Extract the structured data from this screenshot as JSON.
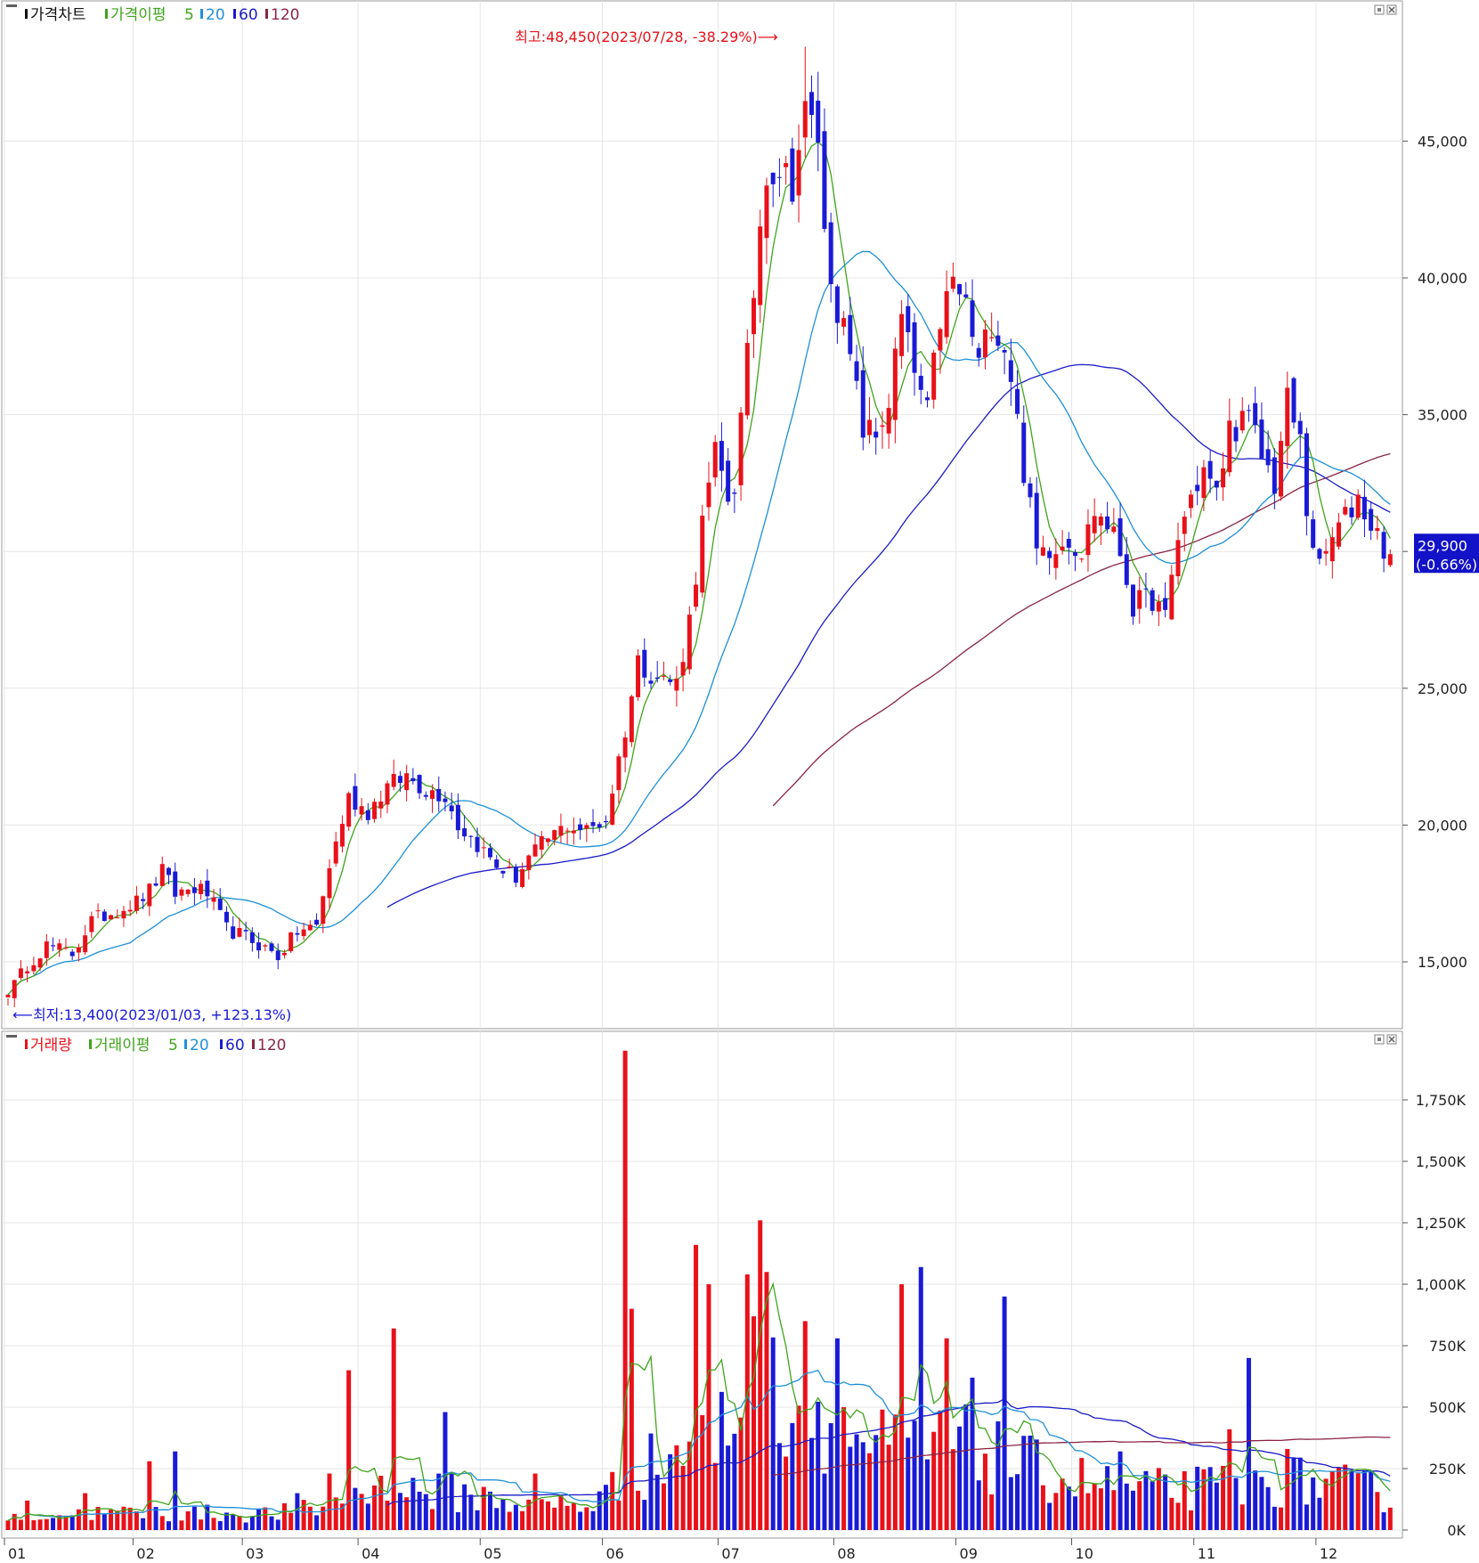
{
  "colors": {
    "up": "#e8111a",
    "down": "#1a1ad6",
    "ma5": "#3fa51c",
    "ma20": "#1e90d8",
    "ma60": "#1c1cc8",
    "ma120": "#8a2446",
    "grid": "#e6e6e6",
    "frame": "#9a9a9a",
    "price_tag_bg": "#1212c8",
    "annot": "#e8111a"
  },
  "icons": [
    "box-icon",
    "close-icon"
  ],
  "price_panel": {
    "legend": {
      "name": "가격차트",
      "ma_label": "가격이평",
      "p5": "5",
      "p20": "20",
      "p60": "60",
      "p120": "120"
    },
    "high_note": "최고:48,450(2023/07/28, -38.29%)⟶",
    "low_note": "⟵최저:13,400(2023/01/03, +123.13%)",
    "last_price": "29,900",
    "last_change": "(-0.66%)",
    "y_ticks": [
      "15,000",
      "20,000",
      "25,000",
      "30,000",
      "35,000",
      "40,000",
      "45,000"
    ]
  },
  "volume_panel": {
    "legend": {
      "name": "거래량",
      "ma_label": "거래이평",
      "p5": "5",
      "p20": "20",
      "p60": "60",
      "p120": "120"
    },
    "y_ticks": [
      "0K",
      "250K",
      "500K",
      "750K",
      "1,000K",
      "1,250K",
      "1,500K",
      "1,750K"
    ]
  },
  "x_labels": [
    "01",
    "02",
    "03",
    "04",
    "05",
    "06",
    "07",
    "08",
    "09",
    "10",
    "11",
    "12"
  ],
  "chart_data": [
    {
      "type": "candlestick",
      "title": "가격차트",
      "x_categories": [
        "01",
        "02",
        "03",
        "04",
        "05",
        "06",
        "07",
        "08",
        "09",
        "10",
        "11",
        "12"
      ],
      "ylim": [
        12800,
        49000
      ],
      "close_anchors": [
        [
          0,
          13800
        ],
        [
          3,
          14900
        ],
        [
          6,
          15600
        ],
        [
          10,
          15300
        ],
        [
          13,
          16500
        ],
        [
          16,
          16800
        ],
        [
          20,
          17200
        ],
        [
          22,
          17600
        ],
        [
          24,
          18300
        ],
        [
          26,
          17500
        ],
        [
          29,
          17700
        ],
        [
          31,
          17500
        ],
        [
          34,
          16200
        ],
        [
          37,
          15900
        ],
        [
          40,
          15500
        ],
        [
          42,
          15200
        ],
        [
          45,
          16100
        ],
        [
          48,
          16300
        ],
        [
          50,
          18500
        ],
        [
          53,
          21000
        ],
        [
          56,
          20500
        ],
        [
          59,
          21400
        ],
        [
          62,
          21800
        ],
        [
          65,
          21300
        ],
        [
          68,
          21100
        ],
        [
          70,
          20000
        ],
        [
          73,
          19300
        ],
        [
          76,
          18500
        ],
        [
          79,
          18100
        ],
        [
          81,
          18800
        ],
        [
          84,
          19500
        ],
        [
          87,
          20000
        ],
        [
          90,
          19800
        ],
        [
          93,
          20200
        ],
        [
          96,
          23500
        ],
        [
          98,
          26000
        ],
        [
          101,
          25400
        ],
        [
          104,
          25200
        ],
        [
          106,
          27500
        ],
        [
          108,
          31000
        ],
        [
          110,
          33500
        ],
        [
          112,
          32000
        ],
        [
          113,
          32500
        ],
        [
          115,
          37000
        ],
        [
          117,
          42000
        ],
        [
          118,
          44000
        ],
        [
          120,
          44000
        ],
        [
          122,
          43500
        ],
        [
          124,
          46000
        ],
        [
          125,
          45600
        ],
        [
          126,
          45200
        ],
        [
          127,
          41500
        ],
        [
          129,
          39000
        ],
        [
          131,
          37000
        ],
        [
          133,
          34500
        ],
        [
          135,
          34200
        ],
        [
          137,
          35500
        ],
        [
          139,
          38500
        ],
        [
          141,
          36500
        ],
        [
          143,
          35000
        ],
        [
          145,
          38500
        ],
        [
          147,
          39800
        ],
        [
          149,
          39000
        ],
        [
          151,
          36800
        ],
        [
          153,
          38500
        ],
        [
          155,
          37500
        ],
        [
          156,
          36500
        ],
        [
          158,
          33000
        ],
        [
          160,
          30000
        ],
        [
          162,
          30200
        ],
        [
          165,
          30500
        ],
        [
          167,
          30000
        ],
        [
          169,
          31500
        ],
        [
          171,
          31000
        ],
        [
          173,
          30000
        ],
        [
          175,
          28000
        ],
        [
          178,
          28300
        ],
        [
          180,
          27500
        ],
        [
          182,
          30500
        ],
        [
          184,
          32000
        ],
        [
          186,
          33000
        ],
        [
          188,
          32000
        ],
        [
          190,
          34500
        ],
        [
          193,
          34800
        ],
        [
          195,
          33500
        ],
        [
          197,
          32500
        ],
        [
          199,
          35500
        ],
        [
          201,
          34000
        ],
        [
          202,
          31500
        ],
        [
          204,
          29300
        ],
        [
          206,
          30500
        ],
        [
          208,
          31200
        ],
        [
          210,
          32000
        ],
        [
          212,
          31000
        ],
        [
          214,
          30200
        ],
        [
          215,
          29900
        ]
      ],
      "high": {
        "value": 48450,
        "date": "2023/07/28"
      },
      "low": {
        "value": 13400,
        "date": "2023/01/03"
      },
      "last": {
        "value": 29900,
        "change_pct": -0.66
      },
      "moving_averages": [
        5,
        20,
        60,
        120
      ]
    },
    {
      "type": "bar",
      "title": "거래량",
      "x_categories": [
        "01",
        "02",
        "03",
        "04",
        "05",
        "06",
        "07",
        "08",
        "09",
        "10",
        "11",
        "12"
      ],
      "ylim": [
        0,
        2000000
      ],
      "baseline_anchors": [
        [
          0,
          60000
        ],
        [
          20,
          70000
        ],
        [
          40,
          65000
        ],
        [
          50,
          90000
        ],
        [
          55,
          170000
        ],
        [
          70,
          150000
        ],
        [
          80,
          110000
        ],
        [
          90,
          100000
        ],
        [
          95,
          180000
        ],
        [
          100,
          260000
        ],
        [
          110,
          400000
        ],
        [
          118,
          650000
        ],
        [
          125,
          480000
        ],
        [
          135,
          330000
        ],
        [
          150,
          330000
        ],
        [
          160,
          240000
        ],
        [
          175,
          160000
        ],
        [
          185,
          170000
        ],
        [
          200,
          200000
        ],
        [
          215,
          150000
        ]
      ],
      "spikes": [
        [
          3,
          120000
        ],
        [
          12,
          150000
        ],
        [
          22,
          280000
        ],
        [
          26,
          320000
        ],
        [
          45,
          150000
        ],
        [
          50,
          230000
        ],
        [
          53,
          650000
        ],
        [
          60,
          820000
        ],
        [
          68,
          480000
        ],
        [
          82,
          230000
        ],
        [
          96,
          1950000
        ],
        [
          97,
          900000
        ],
        [
          107,
          1160000
        ],
        [
          109,
          1000000
        ],
        [
          115,
          1040000
        ],
        [
          117,
          1260000
        ],
        [
          118,
          1050000
        ],
        [
          124,
          850000
        ],
        [
          129,
          780000
        ],
        [
          139,
          1000000
        ],
        [
          142,
          1070000
        ],
        [
          146,
          780000
        ],
        [
          150,
          620000
        ],
        [
          155,
          950000
        ],
        [
          173,
          320000
        ],
        [
          190,
          410000
        ],
        [
          193,
          700000
        ],
        [
          199,
          330000
        ]
      ],
      "moving_averages": [
        5,
        20,
        60,
        120
      ]
    }
  ]
}
